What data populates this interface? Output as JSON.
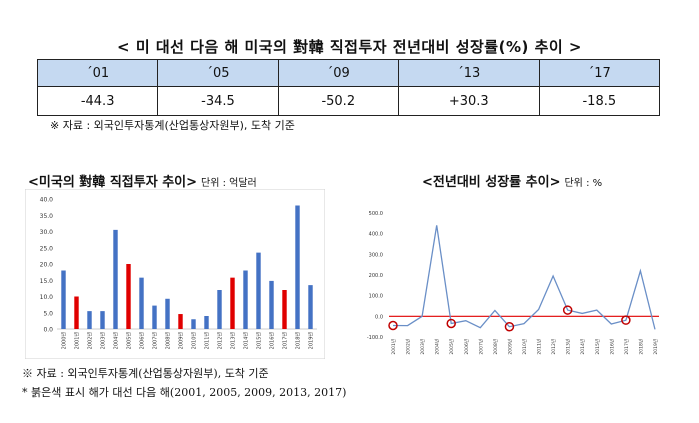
{
  "header": {
    "title": "< 미 대선 다음 해 미국의 對韓 직접투자 전년대비 성장률(%) 추이 >"
  },
  "summary_table": {
    "years": [
      "´01",
      "´05",
      "´09",
      "´13",
      "´17"
    ],
    "values": [
      "-44.3",
      "-34.5",
      "-50.2",
      "+30.3",
      "-18.5"
    ]
  },
  "source_top": "※ 자료 : 외국인투자통계(산업통상자원부), 도착 기준",
  "left_section": {
    "title": "<미국의 對韓 직접투자 추이>",
    "unit": "단위 : 억달러"
  },
  "right_section": {
    "title": "<전년대비 성장률 추이>",
    "unit": "단위 : %"
  },
  "source_bottom": "※ 자료 : 외국인투자통계(산업통상자원부), 도착 기준",
  "note_bottom": "* 붉은색 표시 해가 대선 다음 해(2001, 2005, 2009, 2013, 2017)",
  "colors": {
    "blue": "#4472c4",
    "red": "#e00000",
    "line": "#6a8fc7",
    "table_header": "#c5d9f1"
  },
  "chart_data": [
    {
      "type": "bar",
      "categories": [
        "2000년",
        "2001년",
        "2002년",
        "2003년",
        "2004년",
        "2005년",
        "2006년",
        "2007년",
        "2008년",
        "2009년",
        "2010년",
        "2011년",
        "2012년",
        "2013년",
        "2014년",
        "2015년",
        "2016년",
        "2017년",
        "2018년",
        "2019년"
      ],
      "values": [
        18.0,
        10.0,
        5.5,
        5.5,
        30.5,
        20.0,
        15.8,
        7.2,
        9.3,
        4.6,
        3.0,
        4.0,
        12.0,
        15.8,
        18.0,
        23.5,
        14.8,
        12.0,
        38.0,
        13.5
      ],
      "highlight": [
        "2001년",
        "2005년",
        "2009년",
        "2013년",
        "2017년"
      ],
      "ylim": [
        0,
        40
      ],
      "yticks": [
        "0.0",
        "5.0",
        "10.0",
        "15.0",
        "20.0",
        "25.0",
        "30.0",
        "35.0",
        "40.0"
      ],
      "grid": false
    },
    {
      "type": "line",
      "x": [
        "2001년",
        "2002년",
        "2003년",
        "2004년",
        "2005년",
        "2006년",
        "2007년",
        "2008년",
        "2009년",
        "2010년",
        "2011년",
        "2012년",
        "2013년",
        "2014년",
        "2015년",
        "2016년",
        "2017년",
        "2018년",
        "2019년"
      ],
      "values": [
        -44.3,
        -45.0,
        0.0,
        440.0,
        -34.5,
        -21.0,
        -55.0,
        28.0,
        -50.2,
        -35.0,
        33.0,
        195.0,
        30.3,
        14.0,
        30.0,
        -37.0,
        -18.5,
        220.0,
        -63.0
      ],
      "markers": [
        "2001년",
        "2005년",
        "2009년",
        "2013년",
        "2017년"
      ],
      "ylim": [
        -100,
        500
      ],
      "yticks": [
        "-100.0",
        "0.0",
        "100.0",
        "200.0",
        "300.0",
        "400.0",
        "500.0"
      ],
      "reference_line": 0,
      "grid": false
    }
  ]
}
